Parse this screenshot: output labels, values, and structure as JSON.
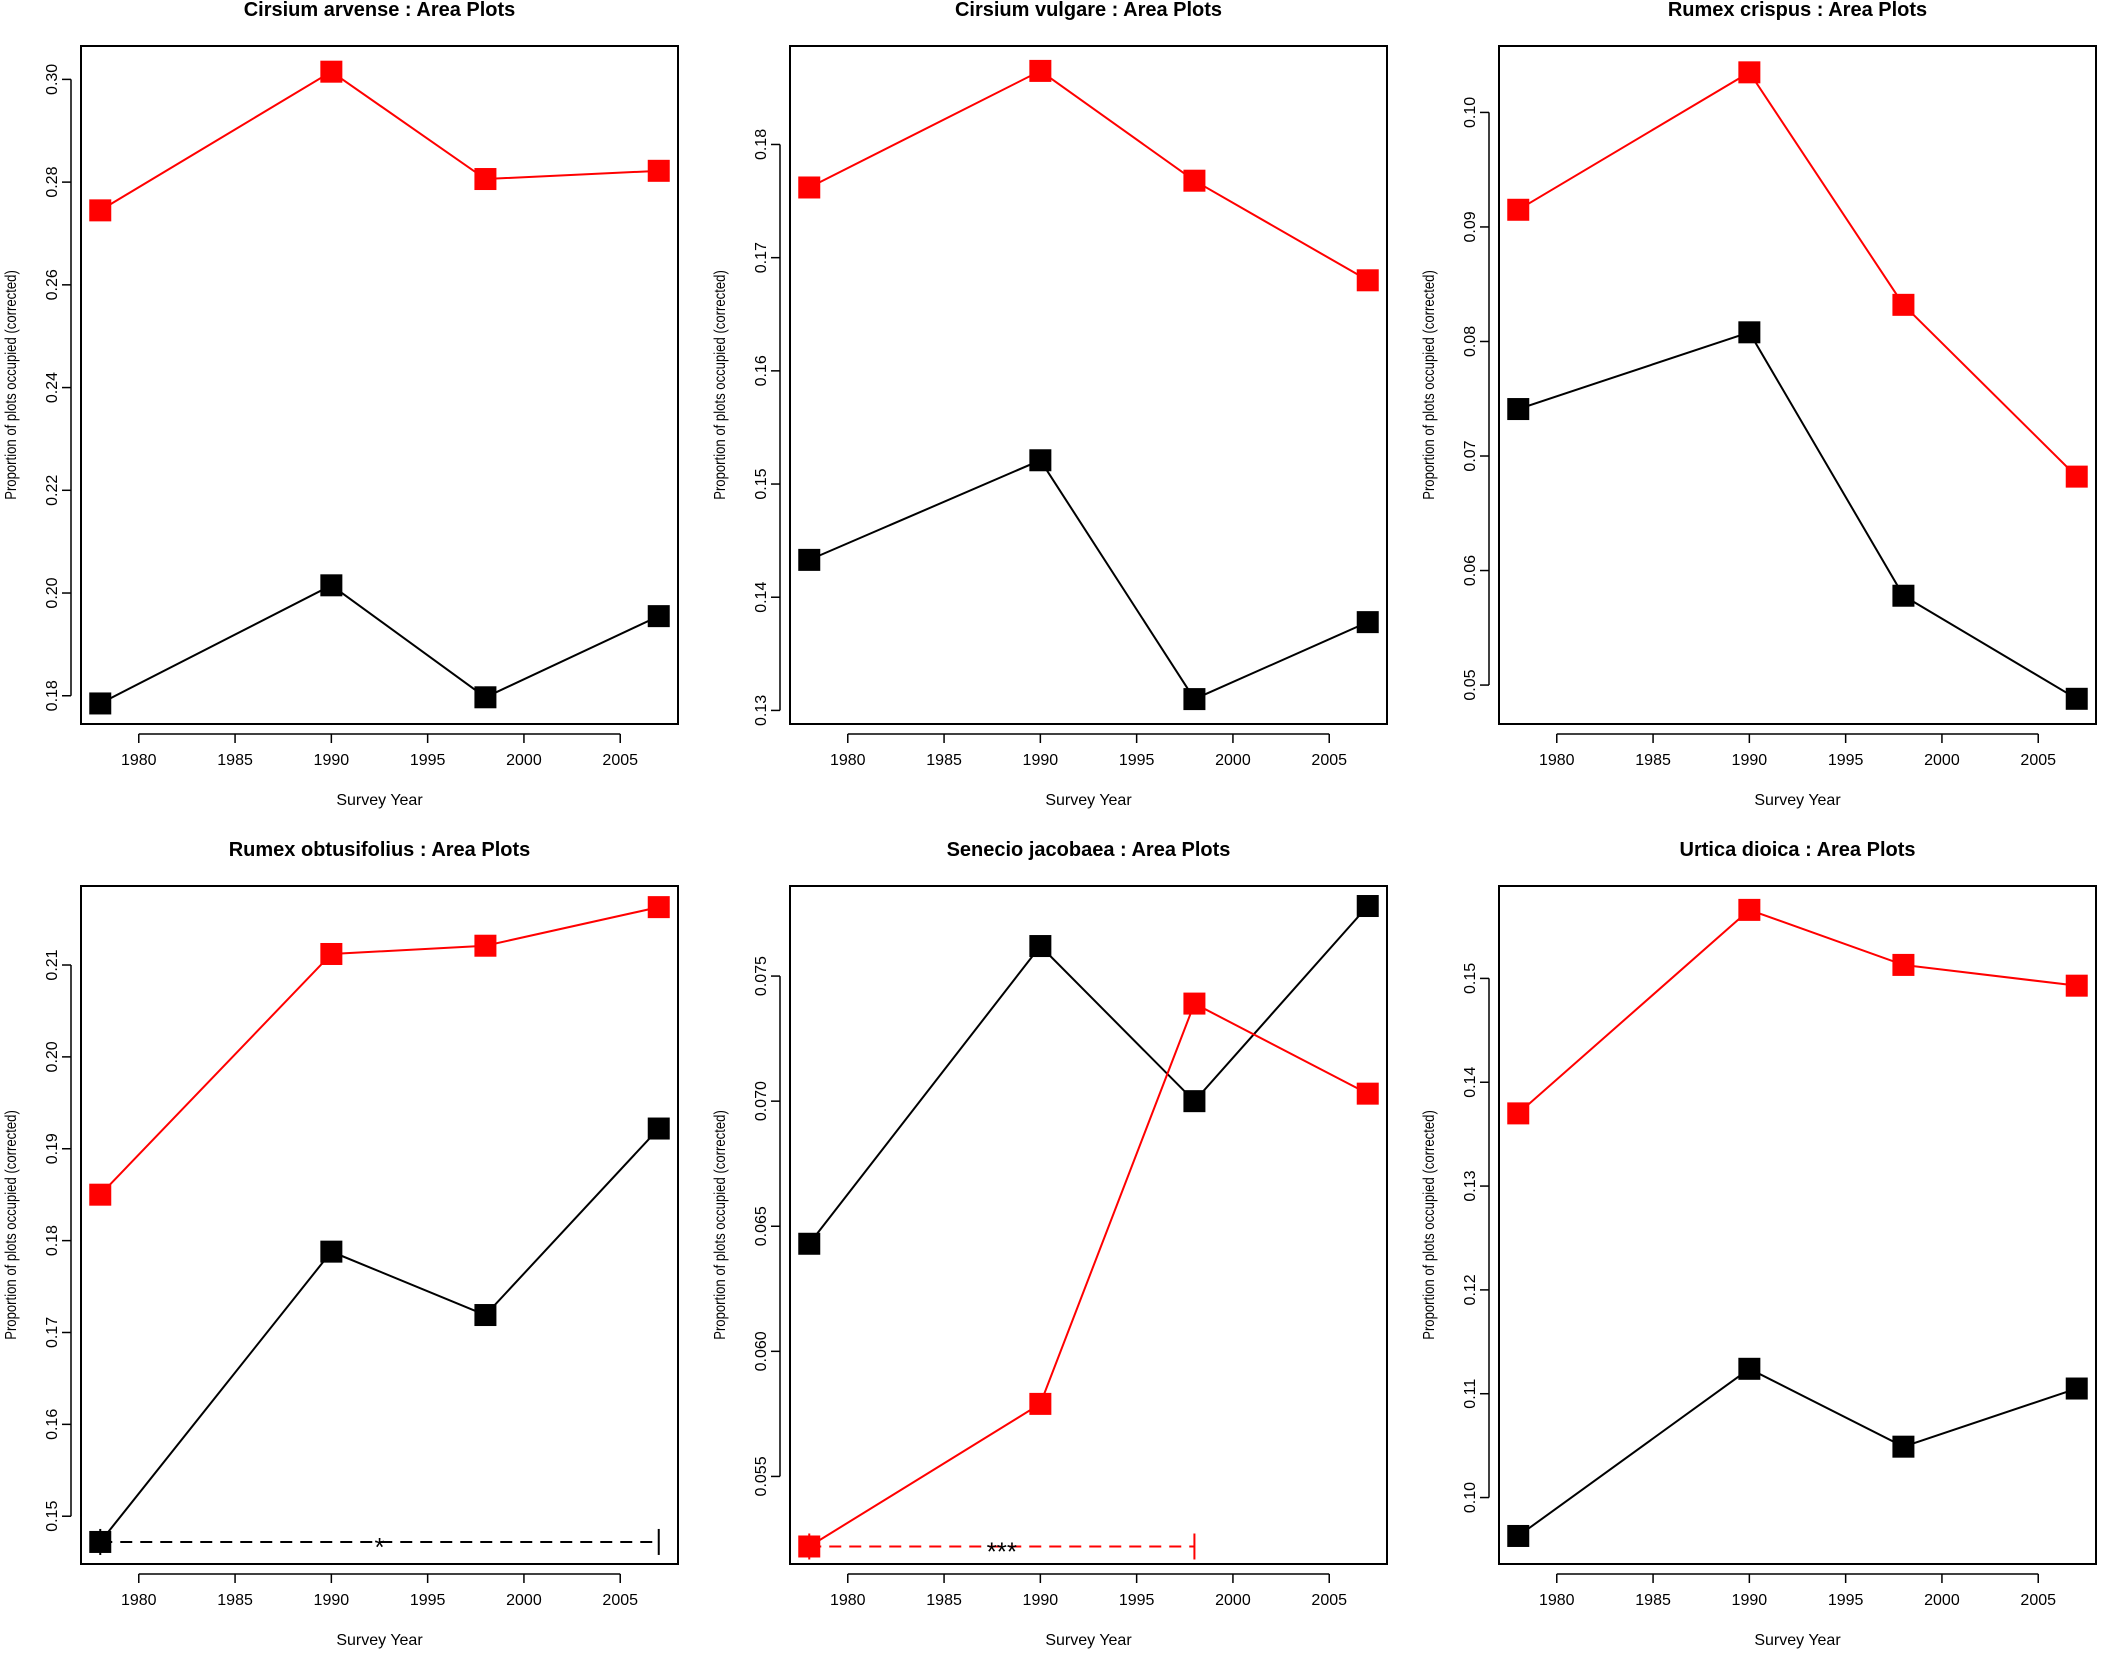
{
  "colors": {
    "series_black": "#000000",
    "series_red": "#ff0000"
  },
  "chart_data": [
    {
      "type": "line",
      "title": "Cirsium arvense  : Area Plots",
      "xlabel": "Survey Year",
      "ylabel": "Proportion of plots occupied (corrected)",
      "x": [
        1978,
        1990,
        1998,
        2007
      ],
      "xlim": [
        1977,
        2008
      ],
      "xticks": [
        1980,
        1985,
        1990,
        1995,
        2000,
        2005
      ],
      "ylim": [
        0.1745,
        0.3065
      ],
      "yticks": [
        "0.18",
        "0.20",
        "0.22",
        "0.24",
        "0.26",
        "0.28",
        "0.30"
      ],
      "series": [
        {
          "color": "#ff0000",
          "values": [
            0.2745,
            0.3015,
            0.2806,
            0.2822
          ]
        },
        {
          "color": "#000000",
          "values": [
            0.1785,
            0.2015,
            0.1797,
            0.1955
          ]
        }
      ],
      "annotations": []
    },
    {
      "type": "line",
      "title": "Cirsium vulgare  : Area Plots",
      "xlabel": "Survey Year",
      "ylabel": "Proportion of plots occupied (corrected)",
      "x": [
        1978,
        1990,
        1998,
        2007
      ],
      "xlim": [
        1977,
        2008
      ],
      "xticks": [
        1980,
        1985,
        1990,
        1995,
        2000,
        2005
      ],
      "ylim": [
        0.1288,
        0.1887
      ],
      "yticks": [
        "0.13",
        "0.14",
        "0.15",
        "0.16",
        "0.17",
        "0.18"
      ],
      "series": [
        {
          "color": "#ff0000",
          "values": [
            0.1762,
            0.1865,
            0.1768,
            0.168
          ]
        },
        {
          "color": "#000000",
          "values": [
            0.1433,
            0.1521,
            0.131,
            0.1378
          ]
        }
      ],
      "annotations": []
    },
    {
      "type": "line",
      "title": "Rumex crispus  : Area Plots",
      "xlabel": "Survey Year",
      "ylabel": "Proportion of plots occupied (corrected)",
      "x": [
        1978,
        1990,
        1998,
        2007
      ],
      "xlim": [
        1977,
        2008
      ],
      "xticks": [
        1980,
        1985,
        1990,
        1995,
        2000,
        2005
      ],
      "ylim": [
        0.0466,
        0.1058
      ],
      "yticks": [
        "0.05",
        "0.06",
        "0.07",
        "0.08",
        "0.09",
        "0.10"
      ],
      "series": [
        {
          "color": "#ff0000",
          "values": [
            0.0915,
            0.1035,
            0.0832,
            0.0682
          ]
        },
        {
          "color": "#000000",
          "values": [
            0.0741,
            0.0808,
            0.0578,
            0.0488
          ]
        }
      ],
      "annotations": []
    },
    {
      "type": "line",
      "title": "Rumex obtusifolius  : Area Plots",
      "xlabel": "Survey Year",
      "ylabel": "Proportion of plots occupied (corrected)",
      "x": [
        1978,
        1990,
        1998,
        2007
      ],
      "xlim": [
        1977,
        2008
      ],
      "xticks": [
        1980,
        1985,
        1990,
        1995,
        2000,
        2005
      ],
      "ylim": [
        0.1448,
        0.2186
      ],
      "yticks": [
        "0.15",
        "0.16",
        "0.17",
        "0.18",
        "0.19",
        "0.20",
        "0.21"
      ],
      "series": [
        {
          "color": "#ff0000",
          "values": [
            0.185,
            0.2112,
            0.2121,
            0.2163
          ]
        },
        {
          "color": "#000000",
          "values": [
            0.1472,
            0.1788,
            0.1719,
            0.1922
          ]
        }
      ],
      "annotations": [
        {
          "color": "#000000",
          "x_from": 1978,
          "x_to": 2007,
          "y": 0.1472,
          "label": "*"
        }
      ]
    },
    {
      "type": "line",
      "title": "Senecio jacobaea  : Area Plots",
      "xlabel": "Survey Year",
      "ylabel": "Proportion of plots occupied (corrected)",
      "x": [
        1978,
        1990,
        1998,
        2007
      ],
      "xlim": [
        1977,
        2008
      ],
      "xticks": [
        1980,
        1985,
        1990,
        1995,
        2000,
        2005
      ],
      "ylim": [
        0.0515,
        0.0786
      ],
      "yticks": [
        "0.055",
        "0.060",
        "0.065",
        "0.070",
        "0.075"
      ],
      "series": [
        {
          "color": "#000000",
          "values": [
            0.0643,
            0.0762,
            0.07,
            0.0778
          ]
        },
        {
          "color": "#ff0000",
          "values": [
            0.0522,
            0.0579,
            0.0739,
            0.0703
          ]
        }
      ],
      "annotations": [
        {
          "color": "#ff0000",
          "x_from": 1978,
          "x_to": 1998,
          "y": 0.0522,
          "label": "***"
        }
      ]
    },
    {
      "type": "line",
      "title": "Urtica dioica  : Area Plots",
      "xlabel": "Survey Year",
      "ylabel": "Proportion of plots occupied (corrected)",
      "x": [
        1978,
        1990,
        1998,
        2007
      ],
      "xlim": [
        1977,
        2008
      ],
      "xticks": [
        1980,
        1985,
        1990,
        1995,
        2000,
        2005
      ],
      "ylim": [
        0.0936,
        0.1589
      ],
      "yticks": [
        "0.10",
        "0.11",
        "0.12",
        "0.13",
        "0.14",
        "0.15"
      ],
      "series": [
        {
          "color": "#ff0000",
          "values": [
            0.137,
            0.1566,
            0.1513,
            0.1493
          ]
        },
        {
          "color": "#000000",
          "values": [
            0.0963,
            0.1124,
            0.1049,
            0.1105
          ]
        }
      ],
      "annotations": []
    }
  ]
}
